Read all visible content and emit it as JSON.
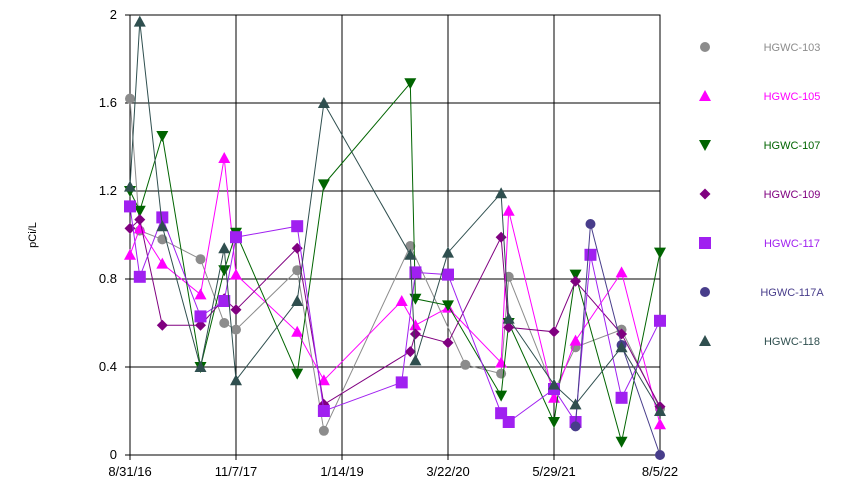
{
  "chart_data": {
    "type": "line",
    "title": "",
    "xlabel": "",
    "ylabel": "pCi/L",
    "x_ticks": [
      "8/31/16",
      "11/7/17",
      "1/14/19",
      "3/22/20",
      "5/29/21",
      "8/5/22"
    ],
    "x_range": [
      "8/31/16",
      "8/5/22"
    ],
    "y_ticks": [
      "0",
      "0.4",
      "0.8",
      "1.2",
      "1.6",
      "2"
    ],
    "ylim": [
      0,
      2
    ],
    "grid": true,
    "legend_position": "right",
    "series": [
      {
        "name": "HGWC-103",
        "color": "#8c8c8c",
        "marker": "circle",
        "points": [
          [
            "8/31/16",
            1.62
          ],
          [
            "10/10/16",
            1.02
          ],
          [
            "1/10/17",
            0.98
          ],
          [
            "6/15/17",
            0.89
          ],
          [
            "9/20/17",
            0.6
          ],
          [
            "11/7/17",
            0.57
          ],
          [
            "7/15/18",
            0.84
          ],
          [
            "11/1/18",
            0.11
          ],
          [
            "10/20/19",
            0.95
          ],
          [
            "6/1/20",
            0.41
          ],
          [
            "10/25/20",
            0.37
          ],
          [
            "11/25/20",
            0.81
          ],
          [
            "5/29/21",
            0.29
          ],
          [
            "8/25/21",
            0.49
          ],
          [
            "3/1/22",
            0.57
          ],
          [
            "8/5/22",
            0.21
          ]
        ]
      },
      {
        "name": "HGWC-105",
        "color": "#ff00ff",
        "marker": "triangle-up",
        "points": [
          [
            "8/31/16",
            0.91
          ],
          [
            "10/10/16",
            1.03
          ],
          [
            "1/10/17",
            0.87
          ],
          [
            "6/15/17",
            0.73
          ],
          [
            "9/20/17",
            1.35
          ],
          [
            "11/7/17",
            0.82
          ],
          [
            "7/15/18",
            0.56
          ],
          [
            "11/1/18",
            0.34
          ],
          [
            "9/15/19",
            0.7
          ],
          [
            "11/10/19",
            0.59
          ],
          [
            "3/22/20",
            0.67
          ],
          [
            "10/25/20",
            0.42
          ],
          [
            "11/25/20",
            1.11
          ],
          [
            "5/29/21",
            0.26
          ],
          [
            "8/25/21",
            0.52
          ],
          [
            "3/1/22",
            0.83
          ],
          [
            "8/5/22",
            0.14
          ]
        ]
      },
      {
        "name": "HGWC-107",
        "color": "#006400",
        "marker": "triangle-down",
        "points": [
          [
            "8/31/16",
            1.2
          ],
          [
            "10/10/16",
            1.11
          ],
          [
            "1/10/17",
            1.45
          ],
          [
            "6/15/17",
            0.4
          ],
          [
            "9/20/17",
            0.84
          ],
          [
            "11/7/17",
            1.01
          ],
          [
            "7/15/18",
            0.37
          ],
          [
            "11/1/18",
            1.23
          ],
          [
            "10/20/19",
            1.69
          ],
          [
            "11/10/19",
            0.71
          ],
          [
            "3/22/20",
            0.68
          ],
          [
            "10/25/20",
            0.27
          ],
          [
            "11/25/20",
            0.6
          ],
          [
            "5/29/21",
            0.15
          ],
          [
            "8/25/21",
            0.82
          ],
          [
            "3/1/22",
            0.06
          ],
          [
            "8/5/22",
            0.92
          ]
        ]
      },
      {
        "name": "HGWC-109",
        "color": "#800080",
        "marker": "diamond",
        "points": [
          [
            "8/31/16",
            1.03
          ],
          [
            "10/10/16",
            1.07
          ],
          [
            "1/10/17",
            0.59
          ],
          [
            "6/15/17",
            0.59
          ],
          [
            "9/20/17",
            0.71
          ],
          [
            "11/7/17",
            0.66
          ],
          [
            "7/15/18",
            0.94
          ],
          [
            "11/1/18",
            0.23
          ],
          [
            "10/20/19",
            0.47
          ],
          [
            "11/10/19",
            0.55
          ],
          [
            "3/22/20",
            0.51
          ],
          [
            "10/25/20",
            0.99
          ],
          [
            "11/25/20",
            0.58
          ],
          [
            "5/29/21",
            0.56
          ],
          [
            "8/25/21",
            0.79
          ],
          [
            "3/1/22",
            0.55
          ],
          [
            "8/5/22",
            0.22
          ]
        ]
      },
      {
        "name": "HGWC-117",
        "color": "#a020f0",
        "marker": "square",
        "points": [
          [
            "8/31/16",
            1.13
          ],
          [
            "10/10/16",
            0.81
          ],
          [
            "1/10/17",
            1.08
          ],
          [
            "6/15/17",
            0.63
          ],
          [
            "9/20/17",
            0.7
          ],
          [
            "11/7/17",
            0.99
          ],
          [
            "7/15/18",
            1.04
          ],
          [
            "11/1/18",
            0.2
          ],
          [
            "9/15/19",
            0.33
          ],
          [
            "11/10/19",
            0.83
          ],
          [
            "3/22/20",
            0.82
          ],
          [
            "10/25/20",
            0.19
          ],
          [
            "11/25/20",
            0.15
          ],
          [
            "5/29/21",
            0.3
          ],
          [
            "8/25/21",
            0.15
          ],
          [
            "10/25/21",
            0.91
          ],
          [
            "3/1/22",
            0.26
          ],
          [
            "8/5/22",
            0.61
          ]
        ]
      },
      {
        "name": "HGWC-117A",
        "color": "#483d8b",
        "marker": "circle",
        "points": [
          [
            "8/25/21",
            0.13
          ],
          [
            "10/25/21",
            1.05
          ],
          [
            "3/1/22",
            0.5
          ],
          [
            "8/5/22",
            0.0
          ]
        ]
      },
      {
        "name": "HGWC-118",
        "color": "#2f4f4f",
        "marker": "triangle-up",
        "points": [
          [
            "8/31/16",
            1.22
          ],
          [
            "10/10/16",
            1.97
          ],
          [
            "1/10/17",
            1.04
          ],
          [
            "6/15/17",
            0.4
          ],
          [
            "9/20/17",
            0.94
          ],
          [
            "11/7/17",
            0.34
          ],
          [
            "7/15/18",
            0.7
          ],
          [
            "11/1/18",
            1.6
          ],
          [
            "10/20/19",
            0.91
          ],
          [
            "11/10/19",
            0.43
          ],
          [
            "3/22/20",
            0.92
          ],
          [
            "10/25/20",
            1.19
          ],
          [
            "11/25/20",
            0.62
          ],
          [
            "5/29/21",
            0.32
          ],
          [
            "8/25/21",
            0.23
          ],
          [
            "3/1/22",
            0.49
          ],
          [
            "8/5/22",
            0.2
          ]
        ]
      }
    ]
  }
}
